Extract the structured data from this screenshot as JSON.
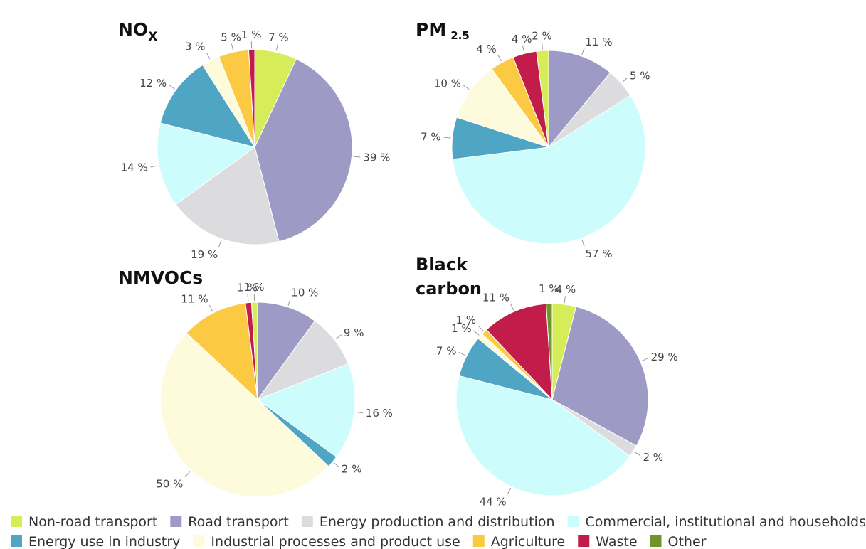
{
  "categories_colors": {
    "Non-road transport": "#d7ec59",
    "Road transport": "#9d9ac6",
    "Energy production and distribution": "#dcdcdf",
    "Commercial, institutional and households": "#ccfcfc",
    "Energy use in industry": "#4fa6c4",
    "Industrial processes and product use": "#fefbdd",
    "Agriculture": "#fcc943",
    "Waste": "#c11c4a",
    "Other": "#6f9429"
  },
  "legend": {
    "row1": [
      "Non-road transport",
      "Road transport",
      "Energy production and distribution",
      "Commercial, institutional and households"
    ],
    "row2": [
      "Energy use in industry",
      "Industrial processes and product use",
      "Agriculture",
      "Waste",
      "Other"
    ]
  },
  "chart_data": [
    {
      "type": "pie",
      "title": "NO",
      "title_sub": "X",
      "slices": [
        {
          "name": "Non-road transport",
          "value": 7,
          "label": "7 %"
        },
        {
          "name": "Road transport",
          "value": 39,
          "label": "39 %"
        },
        {
          "name": "Energy production and distribution",
          "value": 19,
          "label": "19 %"
        },
        {
          "name": "Commercial, institutional and households",
          "value": 14,
          "label": "14 %"
        },
        {
          "name": "Energy use in industry",
          "value": 12,
          "label": "12 %"
        },
        {
          "name": "Industrial processes and product use",
          "value": 3,
          "label": "3 %"
        },
        {
          "name": "Agriculture",
          "value": 5,
          "label": "5 %"
        },
        {
          "name": "Waste",
          "value": 1,
          "label": "1 %"
        }
      ]
    },
    {
      "type": "pie",
      "title": "PM",
      "title_sub": "2.5",
      "slices": [
        {
          "name": "Road transport",
          "value": 11,
          "label": "11 %"
        },
        {
          "name": "Energy production and distribution",
          "value": 5,
          "label": "5 %"
        },
        {
          "name": "Commercial, institutional and households",
          "value": 57,
          "label": "57 %"
        },
        {
          "name": "Energy use in industry",
          "value": 7,
          "label": "7 %"
        },
        {
          "name": "Industrial processes and product use",
          "value": 10,
          "label": "10 %"
        },
        {
          "name": "Agriculture",
          "value": 4,
          "label": "4 %"
        },
        {
          "name": "Waste",
          "value": 4,
          "label": "4 %"
        },
        {
          "name": "Non-road transport",
          "value": 2,
          "label": "2 %"
        }
      ]
    },
    {
      "type": "pie",
      "title": "NMVOCs",
      "title_sub": "",
      "slices": [
        {
          "name": "Road transport",
          "value": 10,
          "label": "10 %"
        },
        {
          "name": "Energy production and distribution",
          "value": 9,
          "label": "9 %"
        },
        {
          "name": "Commercial, institutional and households",
          "value": 16,
          "label": "16 %"
        },
        {
          "name": "Energy use in industry",
          "value": 2,
          "label": "2 %"
        },
        {
          "name": "Industrial processes and product use",
          "value": 50,
          "label": "50 %"
        },
        {
          "name": "Agriculture",
          "value": 11,
          "label": "11 %"
        },
        {
          "name": "Waste",
          "value": 1,
          "label": "1 %"
        },
        {
          "name": "Non-road transport",
          "value": 1,
          "label": "1 %"
        }
      ]
    },
    {
      "type": "pie",
      "title": "Black",
      "title_line2": "carbon",
      "title_sub": "",
      "slices": [
        {
          "name": "Non-road transport",
          "value": 4,
          "label": "4 %"
        },
        {
          "name": "Road transport",
          "value": 29,
          "label": "29 %"
        },
        {
          "name": "Energy production and distribution",
          "value": 2,
          "label": "2 %"
        },
        {
          "name": "Commercial, institutional and households",
          "value": 44,
          "label": "44 %"
        },
        {
          "name": "Energy use in industry",
          "value": 7,
          "label": "7 %"
        },
        {
          "name": "Industrial processes and product use",
          "value": 1,
          "label": "1 %"
        },
        {
          "name": "Agriculture",
          "value": 1,
          "label": "1 %"
        },
        {
          "name": "Waste",
          "value": 11,
          "label": "11 %"
        },
        {
          "name": "Other",
          "value": 1,
          "label": "1 %"
        }
      ]
    }
  ]
}
